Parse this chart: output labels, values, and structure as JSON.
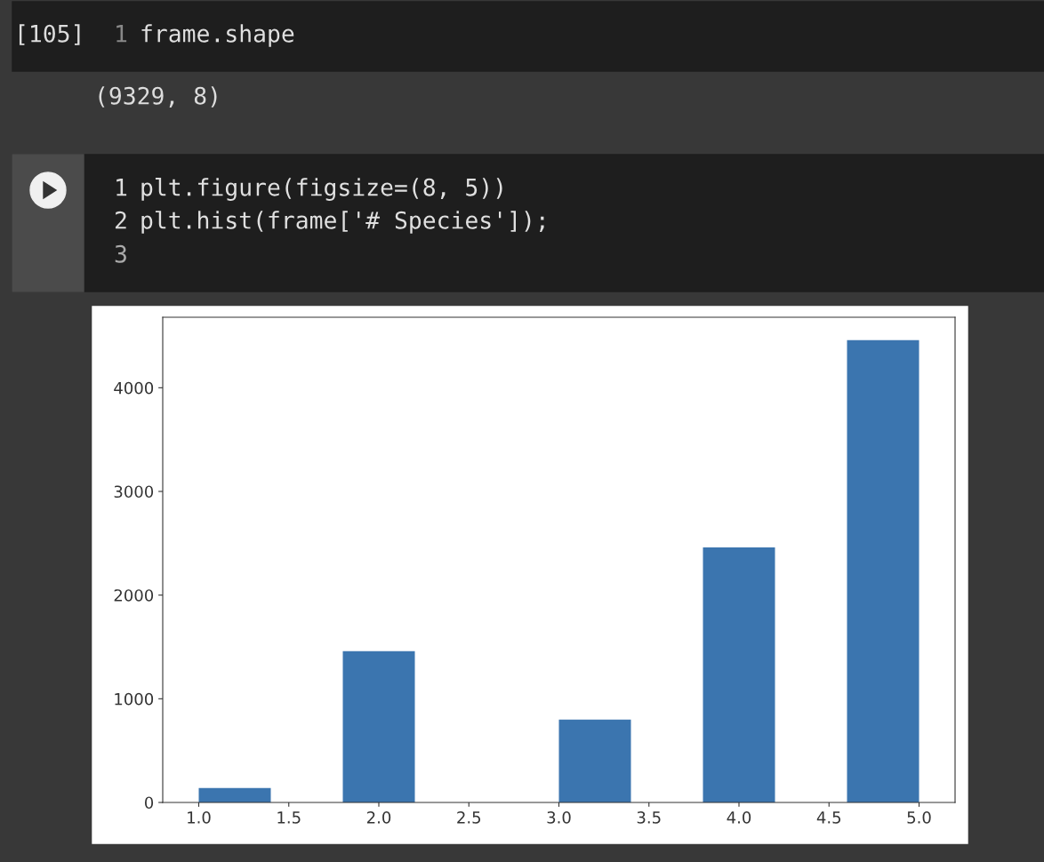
{
  "chart_data": {
    "type": "histogram",
    "bins": [
      1.0,
      1.4,
      1.8,
      2.2,
      2.6,
      3.0,
      3.4,
      3.8,
      4.2,
      4.6,
      5.0
    ],
    "values": [
      140,
      0,
      1460,
      0,
      0,
      800,
      0,
      2460,
      0,
      4460
    ],
    "color": "#3b75af",
    "xlim": [
      0.8,
      5.2
    ],
    "xticks": [
      {
        "value": 1.0,
        "label": "1.0"
      },
      {
        "value": 1.5,
        "label": "1.5"
      },
      {
        "value": 2.0,
        "label": "2.0"
      },
      {
        "value": 2.5,
        "label": "2.5"
      },
      {
        "value": 3.0,
        "label": "3.0"
      },
      {
        "value": 3.5,
        "label": "3.5"
      },
      {
        "value": 4.0,
        "label": "4.0"
      },
      {
        "value": 4.5,
        "label": "4.5"
      },
      {
        "value": 5.0,
        "label": "5.0"
      }
    ],
    "ylim": [
      0,
      4680
    ],
    "yticks": [
      0,
      1000,
      2000,
      3000,
      4000
    ],
    "grid": false,
    "annotations": [
      "[105]",
      "1",
      "frame.shape",
      "(9329, 8)",
      "1",
      "plt.figure(figsize=(8, 5))",
      "2",
      "plt.hist(frame['# Species']);",
      "3"
    ]
  }
}
